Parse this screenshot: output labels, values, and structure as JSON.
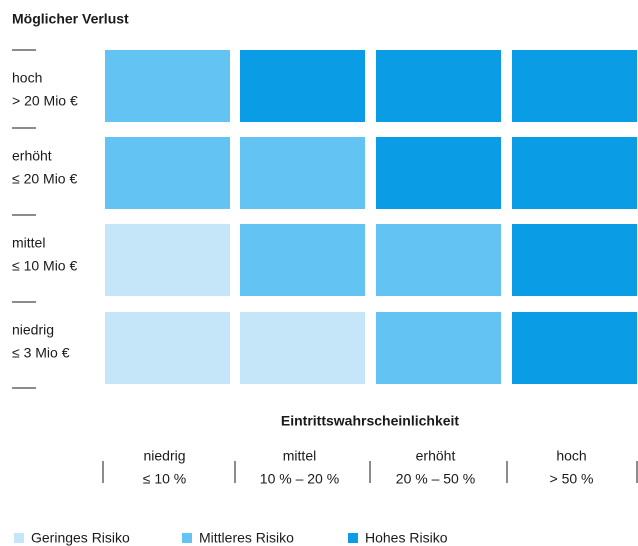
{
  "chart_data": {
    "type": "heatmap",
    "ylabel": "Möglicher Verlust",
    "xlabel": "Eintrittswahrscheinlichkeit",
    "rows": [
      [
        "hoch",
        "> 20 Mio €"
      ],
      [
        "erhöht",
        "≤ 20 Mio €"
      ],
      [
        "mittel",
        "≤ 10 Mio €"
      ],
      [
        "niedrig",
        "≤ 3 Mio €"
      ]
    ],
    "columns": [
      [
        "niedrig",
        "≤ 10 %"
      ],
      [
        "mittel",
        "10 % – 20 %"
      ],
      [
        "erhöht",
        "20 % – 50 %"
      ],
      [
        "hoch",
        "> 50 %"
      ]
    ],
    "levels": [
      {
        "name": "Geringes Risiko",
        "color": "#c4e6f8"
      },
      {
        "name": "Mittleres Risiko",
        "color": "#63c4f3"
      },
      {
        "name": "Hohes Risiko",
        "color": "#0a9de6"
      }
    ],
    "cells": [
      [
        "Mittleres Risiko",
        "Hohes Risiko",
        "Hohes Risiko",
        "Hohes Risiko"
      ],
      [
        "Mittleres Risiko",
        "Mittleres Risiko",
        "Hohes Risiko",
        "Hohes Risiko"
      ],
      [
        "Geringes Risiko",
        "Mittleres Risiko",
        "Mittleres Risiko",
        "Hohes Risiko"
      ],
      [
        "Geringes Risiko",
        "Geringes Risiko",
        "Mittleres Risiko",
        "Hohes Risiko"
      ]
    ]
  }
}
